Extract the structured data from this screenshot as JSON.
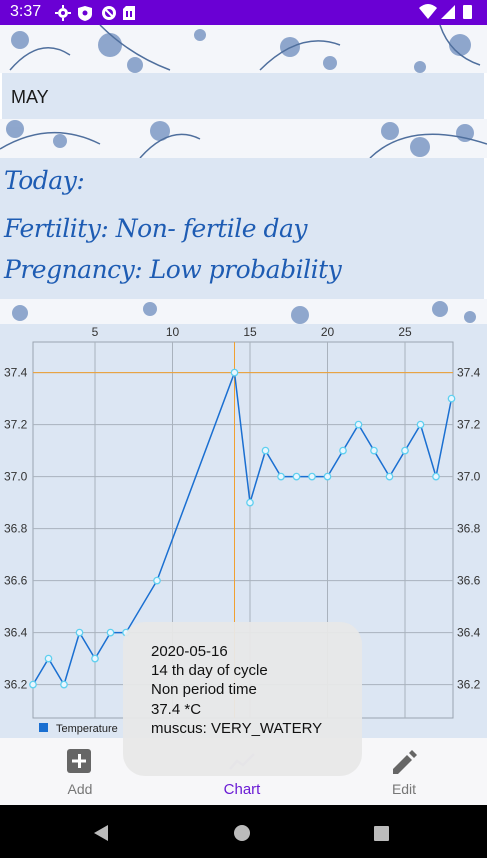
{
  "status_bar": {
    "time": "3:37",
    "left_icons": [
      "gear-icon",
      "shield-icon",
      "blocked-icon",
      "sim-card-icon"
    ],
    "right_icons": [
      "wifi-icon",
      "signal-icon",
      "battery-icon"
    ],
    "background": "#6a00d4"
  },
  "header": {
    "month": "MAY"
  },
  "today": {
    "title": "Today:",
    "fertility": "Fertility: Non- fertile day",
    "pregnancy": "Pregnancy: Low probability"
  },
  "chart_data": {
    "type": "line",
    "x_ticks": [
      5,
      10,
      15,
      20,
      25
    ],
    "y_ticks": [
      "37.4",
      "37.2",
      "37.0",
      "36.8",
      "36.6",
      "36.4",
      "36.2"
    ],
    "xlim": [
      1,
      28
    ],
    "ylim": [
      36.15,
      37.52
    ],
    "grid": true,
    "legend": "bottom-left",
    "series": [
      {
        "name": "Temperature",
        "color": "#1a6fd1",
        "x": [
          1,
          2,
          3,
          4,
          5,
          6,
          7,
          9,
          14,
          15,
          16,
          17,
          18,
          19,
          20,
          21,
          22,
          23,
          24,
          25,
          26,
          27,
          28
        ],
        "values": [
          36.2,
          36.3,
          36.2,
          36.4,
          36.3,
          36.4,
          36.4,
          36.6,
          37.4,
          36.9,
          37.1,
          37.0,
          37.0,
          37.0,
          37.0,
          37.1,
          37.2,
          37.1,
          37.0,
          37.1,
          37.2,
          37.0,
          37.3
        ]
      }
    ],
    "highlight": {
      "x": 14,
      "value": 37.4,
      "color": "#f0a030"
    }
  },
  "tooltip": {
    "date": "2020-05-16",
    "cycle_day": "14 th day of cycle",
    "period": "Non period time",
    "temperature": "37.4 *C",
    "muscus": "muscus: VERY_WATERY"
  },
  "bottom_nav": {
    "items": [
      {
        "label": "Add",
        "icon": "add-box-icon",
        "active": false
      },
      {
        "label": "Chart",
        "icon": "chart-line-icon",
        "active": true
      },
      {
        "label": "Edit",
        "icon": "pencil-icon",
        "active": false
      }
    ],
    "active_color": "#6a1bd4"
  },
  "system_nav": {
    "icons": [
      "back-icon",
      "home-icon",
      "recents-icon"
    ]
  }
}
